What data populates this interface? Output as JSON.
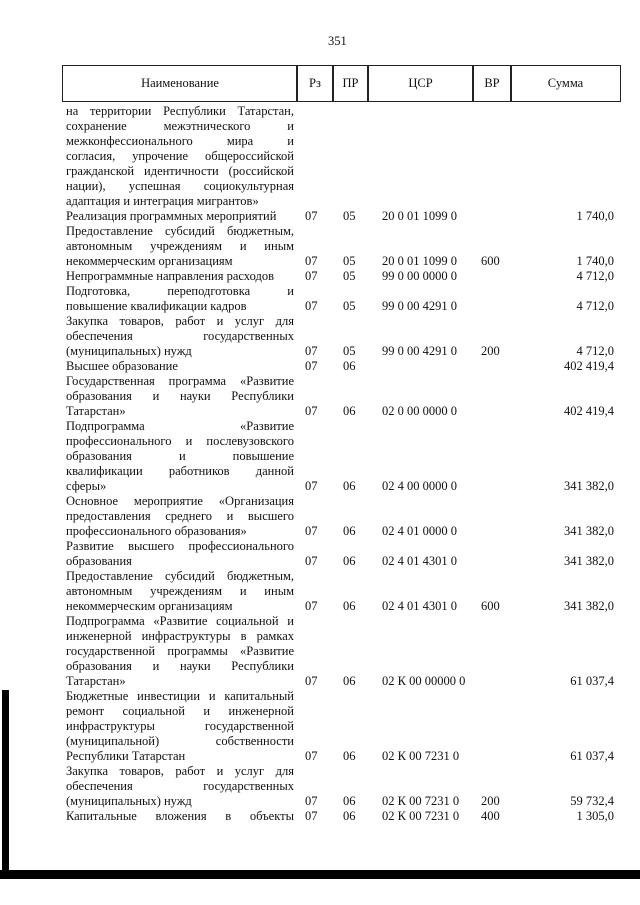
{
  "page_number": "351",
  "header": [
    "Наименование",
    "Рз",
    "ПР",
    "ЦСР",
    "ВР",
    "Сумма"
  ],
  "rows": [
    {
      "name": [
        "на территории Республики Татарстан,",
        "сохранение межэтнического и",
        "межконфессионального мира и",
        "согласия, упрочение общероссийской",
        "гражданской идентичности (российской",
        "нации), успешная социокультурная",
        "адаптация и интеграция мигрантов»"
      ]
    },
    {
      "name": [
        "Реализация программных мероприятий"
      ],
      "rz": "07",
      "pr": "05",
      "csr": "20 0 01 1099 0",
      "sum": "1 740,0"
    },
    {
      "name": [
        "Предоставление субсидий бюджетным,",
        "автономным учреждениям и иным",
        "некоммерческим организациям"
      ],
      "rz": "07",
      "pr": "05",
      "csr": "20 0 01 1099 0",
      "vr": "600",
      "sum": "1 740,0"
    },
    {
      "name": [
        "Непрограммные направления расходов"
      ],
      "rz": "07",
      "pr": "05",
      "csr": "99 0 00 0000 0",
      "sum": "4 712,0"
    },
    {
      "name": [
        "Подготовка, переподготовка и",
        "повышение квалификации кадров"
      ],
      "rz": "07",
      "pr": "05",
      "csr": "99 0 00 4291 0",
      "sum": "4 712,0"
    },
    {
      "name": [
        "Закупка товаров, работ и услуг для",
        "обеспечения государственных",
        "(муниципальных) нужд"
      ],
      "rz": "07",
      "pr": "05",
      "csr": "99 0 00 4291 0",
      "vr": "200",
      "sum": "4 712,0"
    },
    {
      "name": [
        "Высшее образование"
      ],
      "rz": "07",
      "pr": "06",
      "sum": "402 419,4"
    },
    {
      "name": [
        "Государственная программа «Развитие",
        "образования и науки Республики",
        "Татарстан»"
      ],
      "rz": "07",
      "pr": "06",
      "csr": "02 0 00 0000 0",
      "sum": "402 419,4"
    },
    {
      "name": [
        "Подпрограмма «Развитие",
        "профессионального и послевузовского",
        "образования и повышение",
        "квалификации работников данной",
        "сферы»"
      ],
      "rz": "07",
      "pr": "06",
      "csr": "02 4 00 0000 0",
      "sum": "341 382,0"
    },
    {
      "name": [
        "Основное мероприятие «Организация",
        "предоставления среднего и высшего",
        "профессионального образования»"
      ],
      "rz": "07",
      "pr": "06",
      "csr": "02 4 01 0000 0",
      "sum": "341 382,0"
    },
    {
      "name": [
        "Развитие высшего профессионального",
        "образования"
      ],
      "rz": "07",
      "pr": "06",
      "csr": "02 4 01 4301 0",
      "sum": "341 382,0"
    },
    {
      "name": [
        "Предоставление субсидий бюджетным,",
        "автономным учреждениям и иным",
        "некоммерческим организациям"
      ],
      "rz": "07",
      "pr": "06",
      "csr": "02 4 01 4301 0",
      "vr": "600",
      "sum": "341 382,0"
    },
    {
      "name": [
        "Подпрограмма «Развитие социальной и",
        "инженерной инфраструктуры в рамках",
        "государственной программы «Развитие",
        "образования и науки Республики",
        "Татарстан»"
      ],
      "rz": "07",
      "pr": "06",
      "csr": "02 К 00 00000 0",
      "sum": "61 037,4"
    },
    {
      "name": [
        "Бюджетные инвестиции и капитальный",
        "ремонт социальной и инженерной",
        "инфраструктуры государственной",
        "(муниципальной) собственности",
        "Республики Татарстан"
      ],
      "rz": "07",
      "pr": "06",
      "csr": "02 К 00 7231 0",
      "sum": "61 037,4"
    },
    {
      "name": [
        "Закупка товаров, работ и услуг для",
        "обеспечения государственных",
        "(муниципальных) нужд"
      ],
      "rz": "07",
      "pr": "06",
      "csr": "02 К 00 7231 0",
      "vr": "200",
      "sum": "59 732,4"
    },
    {
      "name": [
        "Капитальные вложения в объекты"
      ],
      "rz": "07",
      "pr": "06",
      "csr": "02 К 00 7231 0",
      "vr": "400",
      "sum": "1 305,0"
    }
  ]
}
